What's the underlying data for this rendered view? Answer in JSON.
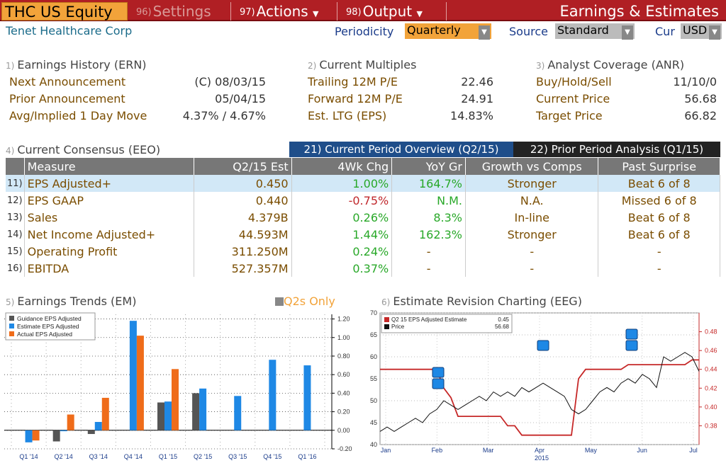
{
  "topbar": {
    "ticker": "THC US Equity",
    "settings": {
      "num": "96)",
      "label": "Settings"
    },
    "actions": {
      "num": "97)",
      "label": "Actions"
    },
    "output": {
      "num": "98)",
      "label": "Output"
    },
    "title": "Earnings & Estimates"
  },
  "header": {
    "company": "Tenet Healthcare Corp",
    "periodicity_label": "Periodicity",
    "periodicity_value": "Quarterly",
    "source_label": "Source",
    "source_value": "Standard",
    "cur_label": "Cur",
    "cur_value": "USD"
  },
  "earnings_history": {
    "num": "1)",
    "title": "Earnings History (ERN)",
    "rows": [
      {
        "label": "Next Announcement",
        "value": "(C)  08/03/15"
      },
      {
        "label": "Prior Announcement",
        "value": "05/04/15"
      },
      {
        "label": "Avg/Implied 1 Day Move",
        "value": "4.37% / 4.67%"
      }
    ]
  },
  "current_multiples": {
    "num": "2)",
    "title": "Current Multiples",
    "rows": [
      {
        "label": "Trailing 12M P/E",
        "value": "22.46"
      },
      {
        "label": "Forward 12M P/E",
        "value": "24.91"
      },
      {
        "label": "Est. LTG (EPS)",
        "value": "14.83%"
      }
    ]
  },
  "analyst_coverage": {
    "num": "3)",
    "title": "Analyst Coverage (ANR)",
    "rows": [
      {
        "label": "Buy/Hold/Sell",
        "value": "11/10/0"
      },
      {
        "label": "Current Price",
        "value": "56.68"
      },
      {
        "label": "Target Price",
        "value": "66.82"
      }
    ]
  },
  "consensus": {
    "num": "4)",
    "title": "Current Consensus (EEO)",
    "tab1": "21) Current Period Overview (Q2/15)",
    "tab2": "22) Prior Period Analysis (Q1/15)",
    "columns": [
      "Measure",
      "Q2/15 Est",
      "4Wk Chg",
      "YoY Gr",
      "Growth vs Comps",
      "Past Surprise"
    ],
    "rows": [
      {
        "n": "11)",
        "measure": "EPS Adjusted+",
        "est": "0.450",
        "chg": "1.00%",
        "yoy": "164.7%",
        "growth": "Stronger",
        "surprise": "Beat 6 of 8"
      },
      {
        "n": "12)",
        "measure": "EPS GAAP",
        "est": "0.440",
        "chg": "-0.75%",
        "yoy": "N.M.",
        "growth": "N.A.",
        "surprise": "Missed 6 of 8"
      },
      {
        "n": "13)",
        "measure": "Sales",
        "est": "4.379B",
        "chg": "0.26%",
        "yoy": "8.3%",
        "growth": "In-line",
        "surprise": "Beat 6 of 8"
      },
      {
        "n": "14)",
        "measure": "Net Income Adjusted+",
        "est": "44.593M",
        "chg": "1.44%",
        "yoy": "162.3%",
        "growth": "Stronger",
        "surprise": "Beat 6 of 8"
      },
      {
        "n": "15)",
        "measure": "Operating Profit",
        "est": "311.250M",
        "chg": "0.24%",
        "yoy": "-",
        "growth": "-",
        "surprise": "-"
      },
      {
        "n": "16)",
        "measure": "EBITDA",
        "est": "527.357M",
        "chg": "0.37%",
        "yoy": "-",
        "growth": "-",
        "surprise": "-"
      }
    ]
  },
  "earnings_trends": {
    "num": "5)",
    "title": "Earnings Trends (EM)",
    "q2s_only": "Q2s Only"
  },
  "revision_chart": {
    "num": "6)",
    "title": "Estimate Revision Charting (EEG)"
  },
  "chart_data": [
    {
      "type": "bar",
      "categories": [
        "Q1 '14",
        "Q2 '14",
        "Q3 '14",
        "Q4 '14",
        "Q1 '15",
        "Q2 '15",
        "Q3 '15",
        "Q4 '15",
        "Q1 '16"
      ],
      "ylim": [
        -0.2,
        1.25
      ],
      "yticks": [
        "1.20",
        "1.00",
        "0.80",
        "0.60",
        "0.40",
        "0.20",
        "0.00",
        "-0.20"
      ],
      "series": [
        {
          "name": "Guidance EPS Adjusted",
          "color": "#555555",
          "values": [
            null,
            -0.12,
            -0.04,
            null,
            0.3,
            0.4,
            null,
            null,
            null
          ]
        },
        {
          "name": "Estimate EPS Adjusted",
          "color": "#1e88e5",
          "values": [
            -0.13,
            -0.01,
            0.09,
            1.18,
            0.31,
            0.45,
            0.37,
            0.76,
            0.7
          ]
        },
        {
          "name": "Actual EPS Adjusted",
          "color": "#ef6c1a",
          "values": [
            -0.11,
            0.17,
            0.35,
            1.02,
            0.66,
            null,
            null,
            null,
            null
          ]
        }
      ]
    },
    {
      "type": "line",
      "x_labels": [
        "Jan",
        "Feb",
        "Mar",
        "Apr",
        "May",
        "Jun",
        "Jul"
      ],
      "x_sublabel": "2015",
      "left_ylim": [
        40,
        70
      ],
      "left_yticks": [
        "70",
        "65",
        "60",
        "55",
        "50",
        "45",
        "40"
      ],
      "right_ylim": [
        0.36,
        0.5
      ],
      "right_yticks": [
        "0.48",
        "0.46",
        "0.44",
        "0.42",
        "0.40",
        "0.38"
      ],
      "series": [
        {
          "name": "Q2 15 EPS Adjusted Estimate",
          "last": "0.45",
          "color": "#c62828",
          "values": [
            0.44,
            0.44,
            0.44,
            0.44,
            0.44,
            0.44,
            0.44,
            0.44,
            0.44,
            0.42,
            0.41,
            0.39,
            0.39,
            0.39,
            0.39,
            0.39,
            0.39,
            0.39,
            0.38,
            0.38,
            0.37,
            0.37,
            0.37,
            0.37,
            0.37,
            0.37,
            0.37,
            0.37,
            0.43,
            0.44,
            0.44,
            0.44,
            0.44,
            0.44,
            0.44,
            0.445,
            0.445,
            0.445,
            0.445,
            0.445,
            0.445,
            0.445,
            0.445,
            0.445,
            0.45,
            0.45
          ]
        },
        {
          "name": "Price",
          "last": "56.68",
          "color": "#111111",
          "values": [
            43,
            44,
            43,
            44,
            45,
            46,
            45,
            47,
            48,
            50,
            49,
            48,
            49,
            50,
            51,
            50,
            52,
            51,
            52,
            51,
            53,
            52,
            53,
            54,
            53,
            52,
            51,
            48,
            47,
            48,
            50,
            52,
            53,
            52,
            54,
            55,
            54,
            56,
            55,
            53,
            60,
            59,
            60,
            61,
            60,
            56.7
          ]
        }
      ]
    }
  ]
}
